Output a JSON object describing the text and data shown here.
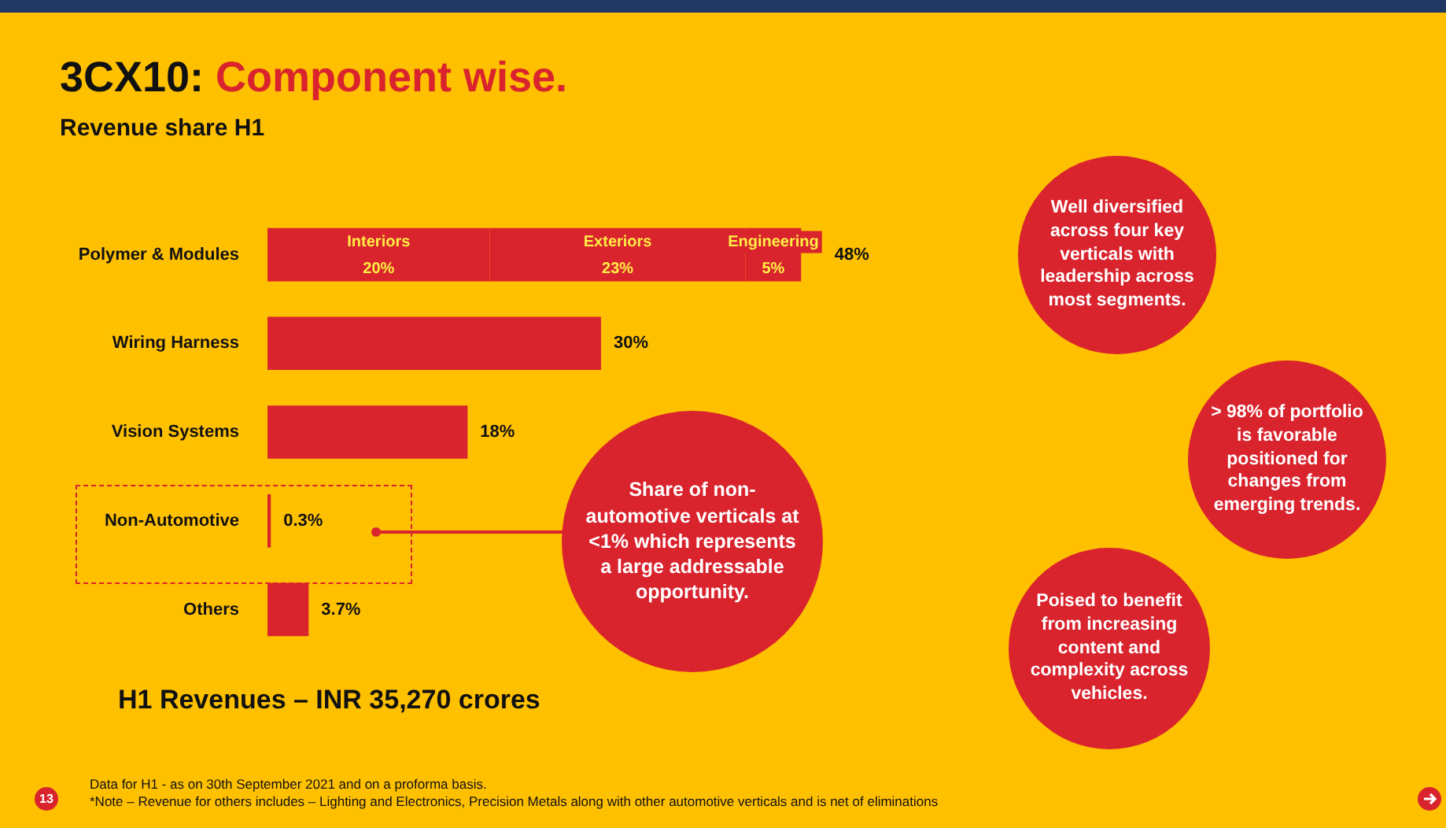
{
  "chart_data": {
    "type": "bar",
    "orientation": "horizontal",
    "stacked": true,
    "title": "3CX10: Component wise.",
    "subtitle": "Revenue share H1",
    "categories": [
      "Polymer & Modules",
      "Wiring Harness",
      "Vision Systems",
      "Non-Automotive",
      "Others"
    ],
    "series": [
      {
        "color": "#d9232d",
        "values": [
          null,
          30,
          18,
          0.3,
          3.7
        ],
        "value_labels": [
          null,
          "30%",
          "18%",
          "0.3%",
          "3.7%"
        ]
      },
      {
        "name": "Interiors",
        "color": "#d9232d",
        "values": [
          20,
          null,
          null,
          null,
          null
        ],
        "value_labels": [
          "20%",
          null,
          null,
          null,
          null
        ]
      },
      {
        "name": "Exteriors",
        "color": "#d9232d",
        "values": [
          23,
          null,
          null,
          null,
          null
        ],
        "value_labels": [
          "23%",
          null,
          null,
          null,
          null
        ]
      },
      {
        "name": "Engineering",
        "color": "#d9232d",
        "values": [
          5,
          null,
          null,
          null,
          null
        ],
        "value_labels": [
          "5%",
          null,
          null,
          null,
          null
        ]
      }
    ],
    "totals": [
      "48%",
      null,
      null,
      null,
      null
    ],
    "legend": false,
    "grid": false,
    "tick_labels": "y",
    "annotations": [
      "H1 Revenues – INR 35,270 crores",
      "Share of non-automotive verticals at <1% which represents a large addressable opportunity.",
      "Well diversified across four key verticals with leadership across most segments.",
      "> 98% of portfolio is favorable positioned for changes from emerging trends.",
      "Poised to benefit from increasing content and complexity across vehicles.",
      "Data for H1 - as on 30th September 2021 and on a proforma basis.",
      "*Note – Revenue for others includes – Lighting and Electronics, Precision Metals along with other automotive verticals and is net of eliminations",
      "13"
    ]
  }
}
